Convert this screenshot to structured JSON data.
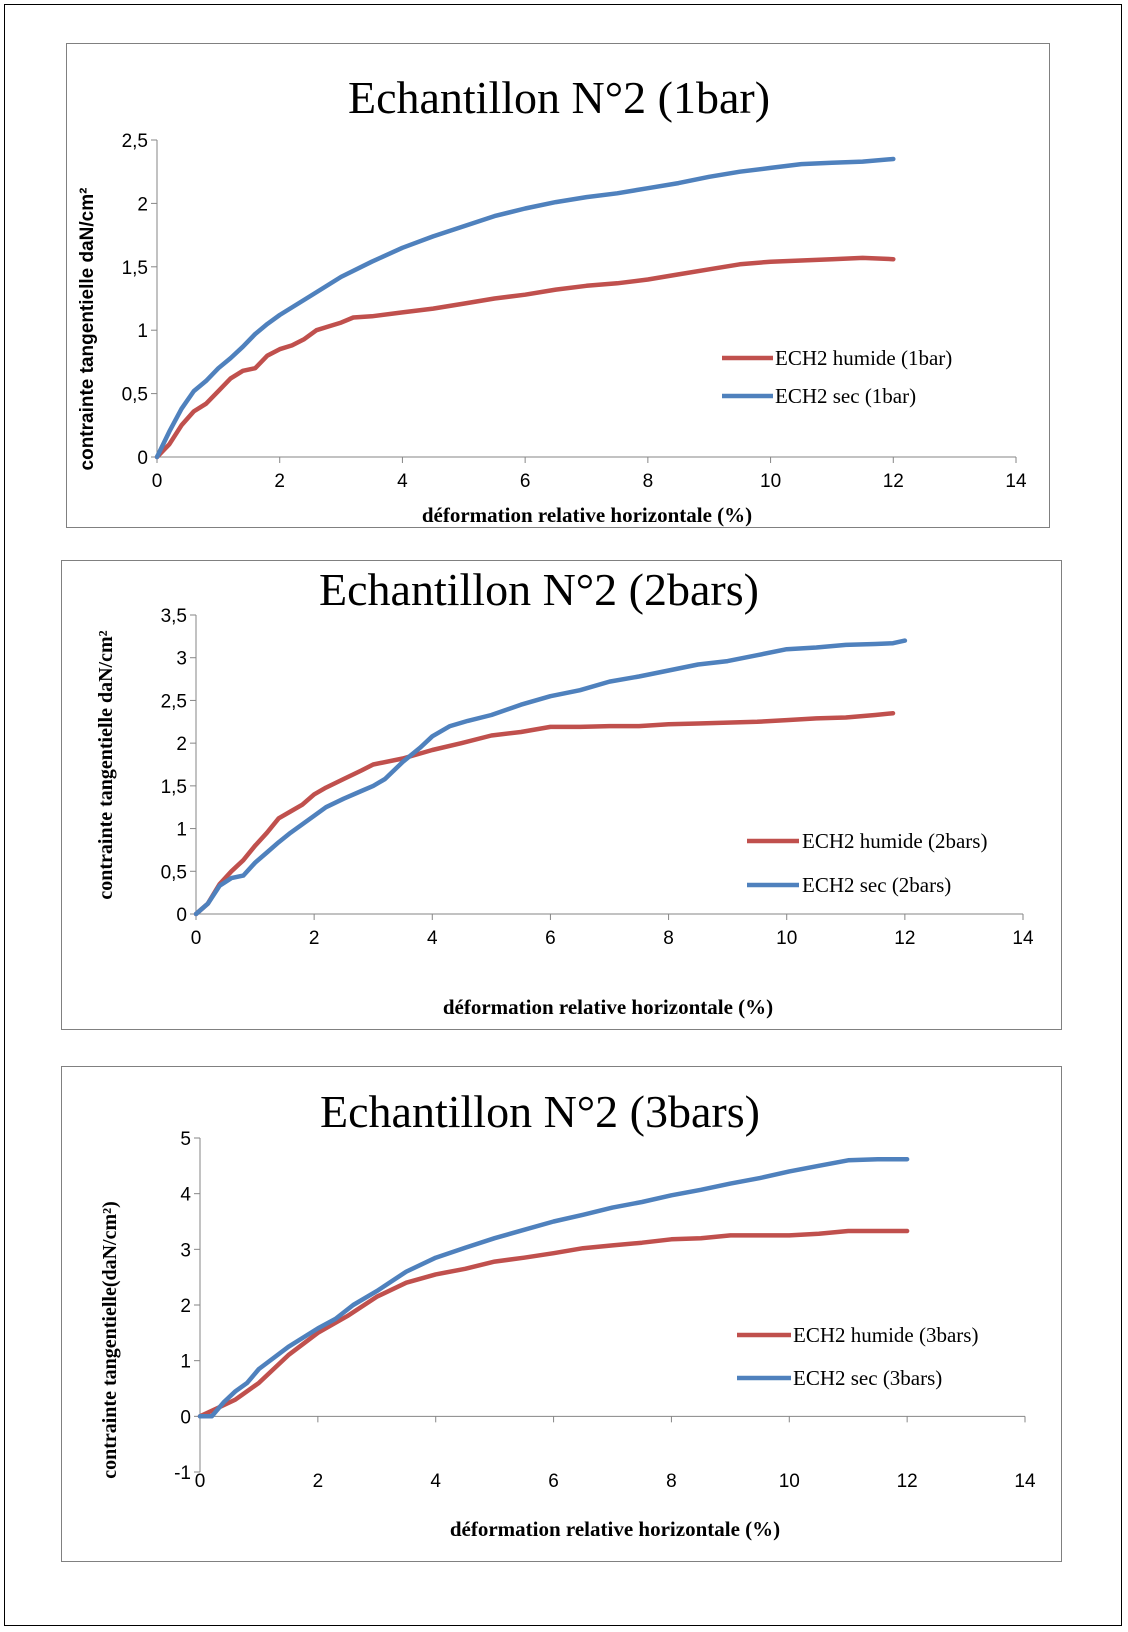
{
  "chart_data": [
    {
      "type": "line",
      "title": "Echantillon N°2 (1bar)",
      "xlabel": "déformation relative horizontale (%)",
      "ylabel": "contrainte tangentielle daN/cm²",
      "xlim": [
        0,
        14
      ],
      "ylim": [
        0,
        2.5
      ],
      "xticks": [
        0,
        2,
        4,
        6,
        8,
        10,
        12,
        14
      ],
      "yticks": [
        0,
        0.5,
        1,
        1.5,
        2,
        2.5
      ],
      "xtick_labels": [
        "0",
        "2",
        "4",
        "6",
        "8",
        "10",
        "12",
        "14"
      ],
      "ytick_labels": [
        "0",
        "0,5",
        "1",
        "1,5",
        "2",
        "2,5"
      ],
      "grid": false,
      "legend_position": "right",
      "series": [
        {
          "name": "ECH2 humide (1bar)",
          "color": "#C0504D",
          "points": [
            [
              0,
              0
            ],
            [
              0.2,
              0.1
            ],
            [
              0.4,
              0.25
            ],
            [
              0.6,
              0.36
            ],
            [
              0.8,
              0.42
            ],
            [
              1.0,
              0.52
            ],
            [
              1.2,
              0.62
            ],
            [
              1.4,
              0.68
            ],
            [
              1.6,
              0.7
            ],
            [
              1.8,
              0.8
            ],
            [
              2.0,
              0.85
            ],
            [
              2.2,
              0.88
            ],
            [
              2.4,
              0.93
            ],
            [
              2.6,
              1.0
            ],
            [
              2.8,
              1.03
            ],
            [
              3.0,
              1.06
            ],
            [
              3.2,
              1.1
            ],
            [
              3.5,
              1.11
            ],
            [
              4.0,
              1.14
            ],
            [
              4.5,
              1.17
            ],
            [
              5.0,
              1.21
            ],
            [
              5.5,
              1.25
            ],
            [
              6.0,
              1.28
            ],
            [
              6.5,
              1.32
            ],
            [
              7.0,
              1.35
            ],
            [
              7.5,
              1.37
            ],
            [
              8.0,
              1.4
            ],
            [
              8.5,
              1.44
            ],
            [
              9.0,
              1.48
            ],
            [
              9.5,
              1.52
            ],
            [
              10.0,
              1.54
            ],
            [
              10.5,
              1.55
            ],
            [
              11.0,
              1.56
            ],
            [
              11.5,
              1.57
            ],
            [
              12.0,
              1.56
            ]
          ]
        },
        {
          "name": "ECH2 sec (1bar)",
          "color": "#4F81BD",
          "points": [
            [
              0,
              0
            ],
            [
              0.2,
              0.2
            ],
            [
              0.4,
              0.38
            ],
            [
              0.6,
              0.52
            ],
            [
              0.8,
              0.6
            ],
            [
              1.0,
              0.7
            ],
            [
              1.2,
              0.78
            ],
            [
              1.4,
              0.87
            ],
            [
              1.6,
              0.97
            ],
            [
              1.8,
              1.05
            ],
            [
              2.0,
              1.12
            ],
            [
              2.5,
              1.27
            ],
            [
              3.0,
              1.42
            ],
            [
              3.5,
              1.54
            ],
            [
              4.0,
              1.65
            ],
            [
              4.5,
              1.74
            ],
            [
              5.0,
              1.82
            ],
            [
              5.5,
              1.9
            ],
            [
              6.0,
              1.96
            ],
            [
              6.5,
              2.01
            ],
            [
              7.0,
              2.05
            ],
            [
              7.5,
              2.08
            ],
            [
              8.0,
              2.12
            ],
            [
              8.5,
              2.16
            ],
            [
              9.0,
              2.21
            ],
            [
              9.5,
              2.25
            ],
            [
              10.0,
              2.28
            ],
            [
              10.5,
              2.31
            ],
            [
              11.0,
              2.32
            ],
            [
              11.5,
              2.33
            ],
            [
              12.0,
              2.35
            ]
          ]
        }
      ]
    },
    {
      "type": "line",
      "title": "Echantillon N°2 (2bars)",
      "xlabel": "déformation relative horizontale (%)",
      "ylabel": "contrainte tangentielle daN/cm²",
      "xlim": [
        0,
        14
      ],
      "ylim": [
        0,
        3.5
      ],
      "xticks": [
        0,
        2,
        4,
        6,
        8,
        10,
        12,
        14
      ],
      "yticks": [
        0,
        0.5,
        1,
        1.5,
        2,
        2.5,
        3,
        3.5
      ],
      "xtick_labels": [
        "0",
        "2",
        "4",
        "6",
        "8",
        "10",
        "12",
        "14"
      ],
      "ytick_labels": [
        "0",
        "0,5",
        "1",
        "1,5",
        "2",
        "2,5",
        "3",
        "3,5"
      ],
      "grid": false,
      "legend_position": "right",
      "series": [
        {
          "name": "ECH2 humide (2bars)",
          "color": "#C0504D",
          "points": [
            [
              0,
              0
            ],
            [
              0.2,
              0.12
            ],
            [
              0.4,
              0.35
            ],
            [
              0.6,
              0.5
            ],
            [
              0.8,
              0.63
            ],
            [
              1.0,
              0.8
            ],
            [
              1.2,
              0.95
            ],
            [
              1.4,
              1.12
            ],
            [
              1.6,
              1.2
            ],
            [
              1.8,
              1.28
            ],
            [
              2.0,
              1.4
            ],
            [
              2.2,
              1.48
            ],
            [
              2.5,
              1.58
            ],
            [
              2.8,
              1.68
            ],
            [
              3.0,
              1.75
            ],
            [
              3.5,
              1.82
            ],
            [
              4.0,
              1.92
            ],
            [
              4.5,
              2.0
            ],
            [
              5.0,
              2.09
            ],
            [
              5.5,
              2.13
            ],
            [
              6.0,
              2.19
            ],
            [
              6.5,
              2.19
            ],
            [
              7.0,
              2.2
            ],
            [
              7.5,
              2.2
            ],
            [
              8.0,
              2.22
            ],
            [
              8.5,
              2.23
            ],
            [
              9.0,
              2.24
            ],
            [
              9.5,
              2.25
            ],
            [
              10.0,
              2.27
            ],
            [
              10.5,
              2.29
            ],
            [
              11.0,
              2.3
            ],
            [
              11.5,
              2.33
            ],
            [
              11.8,
              2.35
            ]
          ]
        },
        {
          "name": "ECH2 sec (2bars)",
          "color": "#4F81BD",
          "points": [
            [
              0,
              0
            ],
            [
              0.2,
              0.12
            ],
            [
              0.4,
              0.33
            ],
            [
              0.6,
              0.42
            ],
            [
              0.8,
              0.45
            ],
            [
              1.0,
              0.6
            ],
            [
              1.2,
              0.72
            ],
            [
              1.4,
              0.84
            ],
            [
              1.6,
              0.95
            ],
            [
              1.8,
              1.05
            ],
            [
              2.0,
              1.15
            ],
            [
              2.2,
              1.25
            ],
            [
              2.5,
              1.35
            ],
            [
              2.8,
              1.44
            ],
            [
              3.0,
              1.5
            ],
            [
              3.2,
              1.58
            ],
            [
              3.5,
              1.78
            ],
            [
              3.8,
              1.95
            ],
            [
              4.0,
              2.08
            ],
            [
              4.3,
              2.2
            ],
            [
              4.6,
              2.26
            ],
            [
              5.0,
              2.33
            ],
            [
              5.5,
              2.45
            ],
            [
              6.0,
              2.55
            ],
            [
              6.5,
              2.62
            ],
            [
              7.0,
              2.72
            ],
            [
              7.5,
              2.78
            ],
            [
              8.0,
              2.85
            ],
            [
              8.5,
              2.92
            ],
            [
              9.0,
              2.96
            ],
            [
              9.5,
              3.03
            ],
            [
              10.0,
              3.1
            ],
            [
              10.5,
              3.12
            ],
            [
              11.0,
              3.15
            ],
            [
              11.5,
              3.16
            ],
            [
              11.8,
              3.17
            ],
            [
              12.0,
              3.2
            ]
          ]
        }
      ]
    },
    {
      "type": "line",
      "title": "Echantillon N°2 (3bars)",
      "xlabel": "déformation relative horizontale (%)",
      "ylabel": "contrainte tangentielle(daN/cm²)",
      "xlim": [
        0,
        14
      ],
      "ylim": [
        -1,
        5
      ],
      "xticks": [
        0,
        2,
        4,
        6,
        8,
        10,
        12,
        14
      ],
      "yticks": [
        -1,
        0,
        1,
        2,
        3,
        4,
        5
      ],
      "xtick_labels": [
        "0",
        "2",
        "4",
        "6",
        "8",
        "10",
        "12",
        "14"
      ],
      "ytick_labels": [
        "-1",
        "0",
        "1",
        "2",
        "3",
        "4",
        "5"
      ],
      "grid": false,
      "legend_position": "right",
      "series": [
        {
          "name": "ECH2 humide (3bars)",
          "color": "#C0504D",
          "points": [
            [
              0,
              0
            ],
            [
              0.3,
              0.15
            ],
            [
              0.6,
              0.3
            ],
            [
              1.0,
              0.6
            ],
            [
              1.5,
              1.1
            ],
            [
              2.0,
              1.5
            ],
            [
              2.5,
              1.8
            ],
            [
              3.0,
              2.15
            ],
            [
              3.5,
              2.4
            ],
            [
              4.0,
              2.55
            ],
            [
              4.5,
              2.65
            ],
            [
              5.0,
              2.78
            ],
            [
              5.5,
              2.85
            ],
            [
              6.0,
              2.93
            ],
            [
              6.5,
              3.02
            ],
            [
              7.0,
              3.07
            ],
            [
              7.5,
              3.12
            ],
            [
              8.0,
              3.18
            ],
            [
              8.5,
              3.2
            ],
            [
              9.0,
              3.25
            ],
            [
              9.5,
              3.25
            ],
            [
              10.0,
              3.25
            ],
            [
              10.5,
              3.28
            ],
            [
              11.0,
              3.33
            ],
            [
              11.5,
              3.33
            ],
            [
              12.0,
              3.33
            ]
          ]
        },
        {
          "name": "ECH2 sec (3bars)",
          "color": "#4F81BD",
          "points": [
            [
              0,
              0
            ],
            [
              0.2,
              0.0
            ],
            [
              0.4,
              0.25
            ],
            [
              0.6,
              0.45
            ],
            [
              0.8,
              0.6
            ],
            [
              1.0,
              0.85
            ],
            [
              1.5,
              1.25
            ],
            [
              2.0,
              1.58
            ],
            [
              2.3,
              1.75
            ],
            [
              2.6,
              2.0
            ],
            [
              3.0,
              2.25
            ],
            [
              3.5,
              2.6
            ],
            [
              4.0,
              2.85
            ],
            [
              4.5,
              3.03
            ],
            [
              5.0,
              3.2
            ],
            [
              5.5,
              3.35
            ],
            [
              6.0,
              3.5
            ],
            [
              6.5,
              3.62
            ],
            [
              7.0,
              3.75
            ],
            [
              7.5,
              3.85
            ],
            [
              8.0,
              3.97
            ],
            [
              8.5,
              4.07
            ],
            [
              9.0,
              4.18
            ],
            [
              9.5,
              4.28
            ],
            [
              10.0,
              4.4
            ],
            [
              10.5,
              4.5
            ],
            [
              11.0,
              4.6
            ],
            [
              11.5,
              4.62
            ],
            [
              12.0,
              4.62
            ]
          ]
        }
      ]
    }
  ]
}
